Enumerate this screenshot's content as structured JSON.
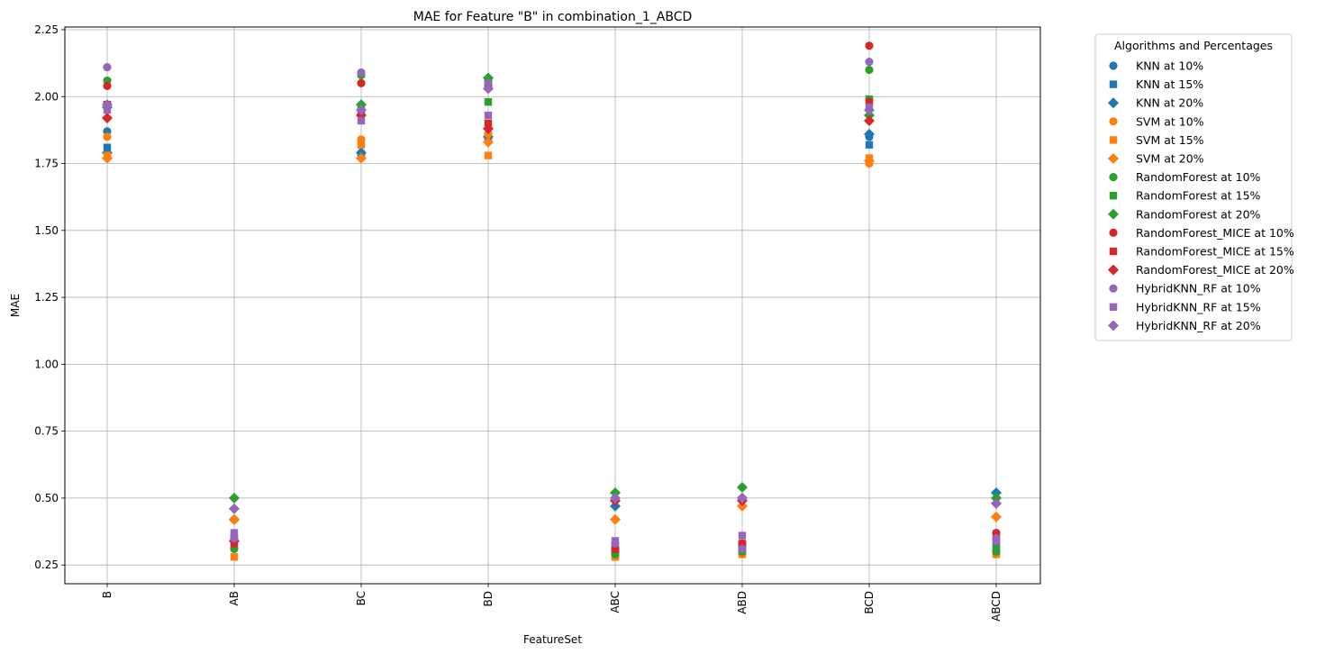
{
  "chart_data": {
    "type": "scatter",
    "title": "MAE for Feature \"B\" in combination_1_ABCD",
    "xlabel": "FeatureSet",
    "ylabel": "MAE",
    "categories": [
      "B",
      "AB",
      "BC",
      "BD",
      "ABC",
      "ABD",
      "BCD",
      "ABCD"
    ],
    "ylim": [
      0.18,
      2.26
    ],
    "yticks": [
      0.25,
      0.5,
      0.75,
      1.0,
      1.25,
      1.5,
      1.75,
      2.0,
      2.25
    ],
    "ytick_labels": [
      "0.25",
      "0.50",
      "0.75",
      "1.00",
      "1.25",
      "1.50",
      "1.75",
      "2.00",
      "2.25"
    ],
    "grid": true,
    "legend": {
      "title": "Algorithms and Percentages",
      "position": "outside right"
    },
    "series": [
      {
        "name": "KNN at 10%",
        "color": "#1f77b4",
        "marker": "circle",
        "values": [
          1.87,
          0.34,
          1.79,
          1.86,
          0.3,
          0.31,
          1.85,
          0.33
        ]
      },
      {
        "name": "KNN at 15%",
        "color": "#1f77b4",
        "marker": "square",
        "values": [
          1.81,
          0.35,
          1.78,
          1.85,
          0.31,
          0.32,
          1.82,
          0.31
        ]
      },
      {
        "name": "KNN at 20%",
        "color": "#1f77b4",
        "marker": "diamond",
        "values": [
          1.79,
          0.42,
          1.79,
          1.85,
          0.47,
          0.5,
          1.86,
          0.52
        ]
      },
      {
        "name": "SVM at 10%",
        "color": "#ff7f0e",
        "marker": "circle",
        "values": [
          1.85,
          0.42,
          1.84,
          1.86,
          0.28,
          0.29,
          1.75,
          0.29
        ]
      },
      {
        "name": "SVM at 15%",
        "color": "#ff7f0e",
        "marker": "square",
        "values": [
          1.78,
          0.28,
          1.82,
          1.78,
          0.28,
          0.29,
          1.77,
          0.29
        ]
      },
      {
        "name": "SVM at 20%",
        "color": "#ff7f0e",
        "marker": "diamond",
        "values": [
          1.77,
          0.42,
          1.77,
          1.83,
          0.42,
          0.47,
          1.76,
          0.43
        ]
      },
      {
        "name": "RandomForest at 10%",
        "color": "#2ca02c",
        "marker": "circle",
        "values": [
          2.06,
          0.31,
          2.08,
          2.06,
          0.29,
          0.3,
          2.1,
          0.3
        ]
      },
      {
        "name": "RandomForest at 15%",
        "color": "#2ca02c",
        "marker": "square",
        "values": [
          1.97,
          0.32,
          1.96,
          1.98,
          0.3,
          0.31,
          1.99,
          0.31
        ]
      },
      {
        "name": "RandomForest at 20%",
        "color": "#2ca02c",
        "marker": "diamond",
        "values": [
          1.96,
          0.5,
          1.97,
          2.07,
          0.52,
          0.54,
          1.93,
          0.5
        ]
      },
      {
        "name": "RandomForest_MICE at 10%",
        "color": "#d62728",
        "marker": "circle",
        "values": [
          2.04,
          0.34,
          2.05,
          2.04,
          0.31,
          0.33,
          2.19,
          0.37
        ]
      },
      {
        "name": "RandomForest_MICE at 15%",
        "color": "#d62728",
        "marker": "square",
        "values": [
          1.97,
          0.33,
          1.94,
          1.9,
          0.31,
          0.33,
          1.98,
          0.35
        ]
      },
      {
        "name": "RandomForest_MICE at 20%",
        "color": "#d62728",
        "marker": "diamond",
        "values": [
          1.92,
          0.34,
          1.93,
          1.88,
          0.49,
          0.49,
          1.91,
          0.48
        ]
      },
      {
        "name": "HybridKNN_RF at 10%",
        "color": "#9467bd",
        "marker": "circle",
        "values": [
          2.11,
          0.35,
          2.09,
          2.05,
          0.33,
          0.31,
          2.13,
          0.35
        ]
      },
      {
        "name": "HybridKNN_RF at 15%",
        "color": "#9467bd",
        "marker": "square",
        "values": [
          1.95,
          0.37,
          1.91,
          1.93,
          0.34,
          0.36,
          1.96,
          0.34
        ]
      },
      {
        "name": "HybridKNN_RF at 20%",
        "color": "#9467bd",
        "marker": "diamond",
        "values": [
          1.97,
          0.46,
          1.95,
          2.03,
          0.5,
          0.5,
          1.95,
          0.48
        ]
      }
    ]
  }
}
